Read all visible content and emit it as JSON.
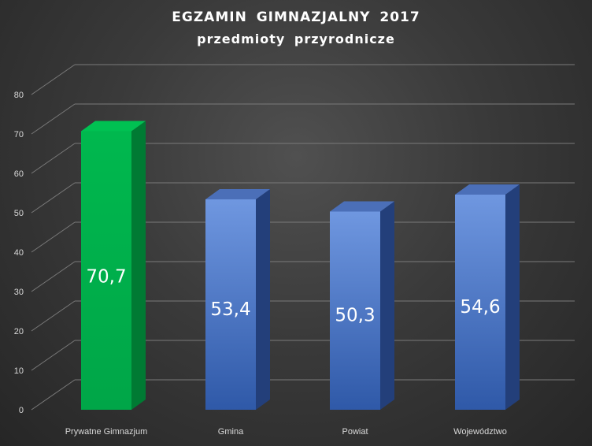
{
  "chart_data": {
    "type": "bar",
    "title": "EGZAMIN  GIMNAZJALNY  2017",
    "subtitle": "przedmioty  przyrodnicze",
    "xlabel": "",
    "ylabel": "",
    "categories": [
      "Prywatne Gimnazjum",
      "Gmina",
      "Powiat",
      "Województwo"
    ],
    "values": [
      70.7,
      53.4,
      50.3,
      54.6
    ],
    "data_labels": [
      "70,7",
      "53,4",
      "50,3",
      "54,6"
    ],
    "ylim": [
      0,
      80
    ],
    "yticks": [
      "0",
      "10",
      "20",
      "30",
      "40",
      "50",
      "60",
      "70",
      "80"
    ],
    "grid": true,
    "legend": "none",
    "colors": [
      "#00b04f",
      "#4472c4",
      "#4472c4",
      "#4472c4"
    ]
  }
}
